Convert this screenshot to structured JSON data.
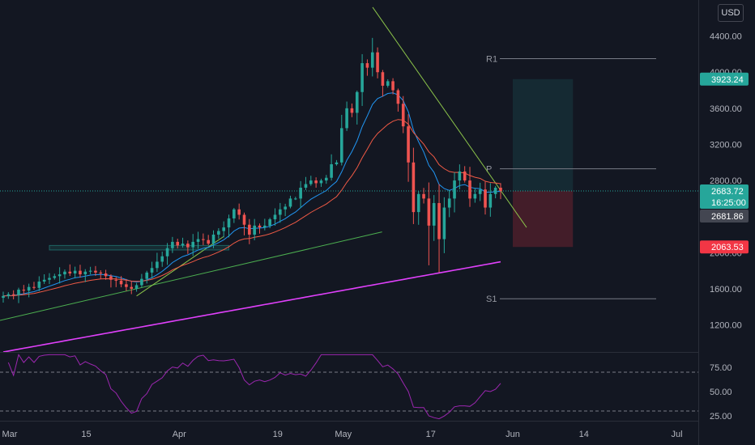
{
  "currency_button": "USD",
  "chart_data": {
    "type": "candlestick",
    "price_axis": {
      "ticks": [
        "4400.00",
        "4000.00",
        "3600.00",
        "3200.00",
        "2800.00",
        "2000.00",
        "1600.00",
        "1200.00"
      ],
      "range": [
        900,
        4800
      ]
    },
    "rsi_axis": {
      "ticks": [
        "75.00",
        "50.00",
        "25.00"
      ],
      "range": [
        20,
        90
      ],
      "bands": [
        70,
        30
      ]
    },
    "x_axis": {
      "labels": [
        "Mar",
        "15",
        "Apr",
        "19",
        "May",
        "17",
        "Jun",
        "14",
        "Jul"
      ],
      "dates": [
        "2021-03-01",
        "2021-03-15",
        "2021-04-01",
        "2021-04-19",
        "2021-05-01",
        "2021-05-17",
        "2021-06-01",
        "2021-06-14",
        "2021-07-01"
      ]
    },
    "price_tags": [
      {
        "value": 3923.24,
        "label": "3923.24",
        "color": "#26a69a"
      },
      {
        "value": 2683.72,
        "label": "2683.72",
        "sub": "16:25:00",
        "color": "#26a69a"
      },
      {
        "value": 2681.86,
        "label": "2681.86",
        "color": "#434651"
      },
      {
        "value": 2063.53,
        "label": "2063.53",
        "color": "#f23645"
      }
    ],
    "pivots": [
      {
        "label": "R1",
        "value": 4150
      },
      {
        "label": "P",
        "value": 2930
      },
      {
        "label": "S1",
        "value": 1490
      }
    ],
    "position": {
      "entry": 2683.72,
      "target": 3923.24,
      "stop": 2063.53,
      "from": "2021-06-01",
      "to": "2021-06-12"
    },
    "closes": [
      1520,
      1540,
      1530,
      1590,
      1580,
      1620,
      1610,
      1680,
      1700,
      1720,
      1740,
      1760,
      1790,
      1770,
      1800,
      1760,
      1790,
      1800,
      1780,
      1770,
      1740,
      1700,
      1690,
      1650,
      1620,
      1600,
      1640,
      1710,
      1780,
      1830,
      1900,
      1960,
      2050,
      2120,
      2080,
      2100,
      2060,
      2120,
      2150,
      2140,
      2100,
      2200,
      2240,
      2280,
      2380,
      2480,
      2420,
      2310,
      2200,
      2300,
      2280,
      2300,
      2370,
      2420,
      2480,
      2510,
      2600,
      2600,
      2720,
      2760,
      2800,
      2770,
      2800,
      2830,
      2980,
      3000,
      3380,
      3600,
      3550,
      3780,
      4100,
      4050,
      4220,
      4000,
      3850,
      3900,
      3800,
      3650,
      3400,
      3000,
      2450,
      2650,
      2600,
      2300,
      2550,
      2150,
      2500,
      2600,
      2800,
      2900,
      2800,
      2600,
      2650,
      2700,
      2500,
      2650,
      2720,
      2683
    ]
  },
  "colors": {
    "up": "#26a69a",
    "down": "#ef5350",
    "ema_fast": "#2196f3",
    "ema_slow": "#f05a45",
    "ma_long": "#e040fb",
    "rsi": "#9c27b0",
    "trend": "#4caf50",
    "trend2": "#8bc34a"
  }
}
